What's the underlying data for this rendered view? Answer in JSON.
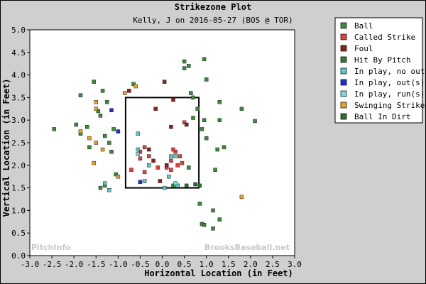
{
  "chart_data": {
    "type": "scatter",
    "title": "Strikezone Plot",
    "subtitle": "Kelly, J on 2016-05-27 (BOS @ TOR)",
    "xlabel": "Horizontal Location (in Feet)",
    "ylabel": "Vertical Location (in Feet)",
    "xlim": [
      -3.0,
      3.0
    ],
    "ylim": [
      0.0,
      5.0
    ],
    "x_ticks": [
      "-3.0",
      "-2.5",
      "-2.0",
      "-1.5",
      "-1.0",
      "-0.5",
      "0.0",
      "0.5",
      "1.0",
      "1.5",
      "2.0",
      "2.5",
      "3.0"
    ],
    "y_ticks": [
      "0.0",
      "0.5",
      "1.0",
      "1.5",
      "2.0",
      "2.5",
      "3.0",
      "3.5",
      "4.0",
      "4.5",
      "5.0"
    ],
    "grid": false,
    "legend_position": "right",
    "strike_zone": {
      "x": [
        -0.83,
        0.83
      ],
      "y": [
        1.5,
        3.5
      ]
    },
    "watermarks": [
      "PitchInfo",
      "BrooksBaseball.net"
    ],
    "series": [
      {
        "name": "Ball",
        "color": "#3c8a3c",
        "points": [
          [
            -2.45,
            2.8
          ],
          [
            -1.95,
            2.9
          ],
          [
            -1.85,
            2.7
          ],
          [
            -1.7,
            2.85
          ],
          [
            -1.55,
            3.85
          ],
          [
            -1.35,
            3.65
          ],
          [
            -1.65,
            2.4
          ],
          [
            -1.45,
            3.2
          ],
          [
            -1.4,
            3.1
          ],
          [
            -1.3,
            2.65
          ],
          [
            -1.25,
            3.4
          ],
          [
            -1.2,
            2.5
          ],
          [
            -1.15,
            2.3
          ],
          [
            -1.1,
            2.8
          ],
          [
            -1.05,
            1.8
          ],
          [
            -1.3,
            1.55
          ],
          [
            -1.4,
            1.5
          ],
          [
            -1.85,
            3.55
          ],
          [
            -0.65,
            3.8
          ],
          [
            0.5,
            4.3
          ],
          [
            0.5,
            4.15
          ],
          [
            0.6,
            4.2
          ],
          [
            0.95,
            4.35
          ],
          [
            1.0,
            3.9
          ],
          [
            0.65,
            3.6
          ],
          [
            0.7,
            3.5
          ],
          [
            0.8,
            3.25
          ],
          [
            1.3,
            3.4
          ],
          [
            0.7,
            3.05
          ],
          [
            0.95,
            3.0
          ],
          [
            1.3,
            3.0
          ],
          [
            1.8,
            3.25
          ],
          [
            2.1,
            2.98
          ],
          [
            1.0,
            2.6
          ],
          [
            1.25,
            2.35
          ],
          [
            1.4,
            2.4
          ],
          [
            1.2,
            1.9
          ],
          [
            0.85,
            1.15
          ],
          [
            1.15,
            1.0
          ],
          [
            1.3,
            0.8
          ],
          [
            0.9,
            0.7
          ],
          [
            0.95,
            0.68
          ],
          [
            1.15,
            0.6
          ],
          [
            0.6,
            1.95
          ],
          [
            0.25,
            1.55
          ],
          [
            0.9,
            2.8
          ]
        ]
      },
      {
        "name": "Called Strike",
        "color": "#e04040",
        "points": [
          [
            -0.5,
            2.3
          ],
          [
            -0.4,
            2.4
          ],
          [
            -0.3,
            2.2
          ],
          [
            -0.5,
            2.15
          ],
          [
            -0.4,
            1.85
          ],
          [
            -0.7,
            1.9
          ],
          [
            -0.1,
            1.95
          ],
          [
            0.1,
            1.95
          ],
          [
            0.2,
            1.9
          ],
          [
            0.3,
            2.3
          ],
          [
            0.2,
            2.1
          ],
          [
            0.25,
            2.35
          ],
          [
            0.4,
            2.2
          ],
          [
            0.5,
            2.95
          ],
          [
            0.35,
            2.0
          ],
          [
            0.45,
            2.05
          ]
        ]
      },
      {
        "name": "Foul",
        "color": "#8b2020",
        "points": [
          [
            -0.75,
            3.65
          ],
          [
            0.05,
            3.85
          ],
          [
            0.25,
            3.45
          ],
          [
            -0.15,
            3.25
          ],
          [
            0.2,
            2.85
          ],
          [
            0.55,
            2.9
          ],
          [
            -0.3,
            2.35
          ],
          [
            -0.2,
            2.1
          ],
          [
            0.1,
            2.0
          ],
          [
            -0.05,
            1.65
          ]
        ]
      },
      {
        "name": "Hit By Pitch",
        "color": "#2e7d32",
        "points": []
      },
      {
        "name": "In play, no out",
        "color": "#5cc8c8",
        "points": [
          [
            -0.55,
            2.7
          ],
          [
            -0.55,
            2.35
          ],
          [
            -0.3,
            2.0
          ],
          [
            0.2,
            2.2
          ],
          [
            0.15,
            1.75
          ],
          [
            -0.4,
            1.65
          ],
          [
            -1.2,
            1.45
          ],
          [
            -1.3,
            1.6
          ],
          [
            0.35,
            1.55
          ],
          [
            0.05,
            1.5
          ],
          [
            0.3,
            2.2
          ]
        ]
      },
      {
        "name": "In play, out(s)",
        "color": "#1c2fd4",
        "points": [
          [
            -1.15,
            3.22
          ],
          [
            -1.0,
            2.75
          ],
          [
            -0.5,
            1.63
          ]
        ]
      },
      {
        "name": "In play, run(s)",
        "color": "#7fd8d8",
        "points": [
          [
            -0.55,
            2.25
          ],
          [
            0.3,
            1.6
          ]
        ]
      },
      {
        "name": "Swinging Strike",
        "color": "#f0a020",
        "points": [
          [
            -1.5,
            3.4
          ],
          [
            -1.5,
            3.25
          ],
          [
            -1.85,
            2.75
          ],
          [
            -1.65,
            2.6
          ],
          [
            -1.5,
            2.5
          ],
          [
            -1.35,
            2.35
          ],
          [
            -1.55,
            2.05
          ],
          [
            -0.6,
            3.75
          ],
          [
            -0.85,
            3.6
          ],
          [
            1.8,
            1.3
          ],
          [
            -1.0,
            1.75
          ]
        ]
      },
      {
        "name": "Ball In Dirt",
        "color": "#2e6e2e",
        "points": [
          [
            0.85,
            1.55
          ],
          [
            0.55,
            1.55
          ],
          [
            0.75,
            1.58
          ]
        ]
      }
    ]
  }
}
